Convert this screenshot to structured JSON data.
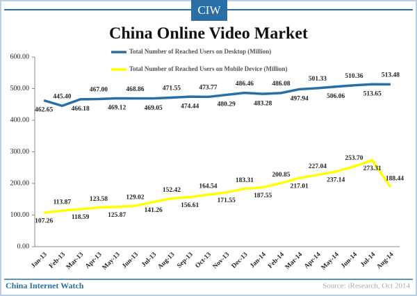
{
  "chart_data": {
    "type": "line",
    "logo": "CIW",
    "title": "China Online Video Market",
    "footer": "China Internet Watch",
    "source": "Source: iResearch, Oct 2014",
    "categories": [
      "Jan-13",
      "Feb-13",
      "Mar-13",
      "Apr-13",
      "May-13",
      "Jun-13",
      "Jul-13",
      "Aug-13",
      "Sep-13",
      "Oct-13",
      "Nov-13",
      "Dec-13",
      "Jan-14",
      "Feb-14",
      "Mar-14",
      "Apr-14",
      "May-14",
      "Jun-14",
      "Jul-14",
      "Aug-14"
    ],
    "series": [
      {
        "name": "Total Number of Reached Users on Desktop (Million)",
        "color": "#2a6ea6",
        "values": [
          462.65,
          445.4,
          466.18,
          467,
          469.12,
          468.86,
          469.05,
          471.55,
          474.44,
          473.77,
          480.29,
          486.46,
          483.28,
          486.08,
          497.94,
          501.33,
          506.06,
          510.36,
          513.65,
          513.48
        ],
        "value_labels": [
          "462.65",
          "445.40",
          "466.18",
          "467.00",
          "469.12",
          "468.86",
          "469.05",
          "471.55",
          "474.44",
          "473.77",
          "480.29",
          "486.46",
          "483.28",
          "486.08",
          "497.94",
          "501.33",
          "506.06",
          "510.36",
          "513.65",
          "513.48"
        ]
      },
      {
        "name": "Total Number of Reached Users on Mobile Device (Million)",
        "color": "#ffff00",
        "values": [
          107.26,
          113.87,
          118.59,
          123.58,
          125.87,
          129.02,
          141.26,
          152.42,
          156.61,
          164.54,
          171.55,
          183.31,
          187.55,
          200.85,
          217.01,
          227.04,
          237.14,
          253.7,
          273.31,
          188.44
        ],
        "value_labels": [
          "107.26",
          "113.87",
          "118.59",
          "123.58",
          "125.87",
          "129.02",
          "141.26",
          "152.42",
          "156.61",
          "164.54",
          "171.55",
          "183.31",
          "187.55",
          "200.85",
          "217.01",
          "227.04",
          "237.14",
          "253.70",
          "273.31",
          "188.44"
        ]
      }
    ],
    "ylim": [
      0,
      600
    ],
    "yticks": [
      {
        "value": 0,
        "label": "0.00"
      },
      {
        "value": 100,
        "label": "100.00"
      },
      {
        "value": 200,
        "label": "200.00"
      },
      {
        "value": 300,
        "label": "300.00"
      },
      {
        "value": 400,
        "label": "400.00"
      },
      {
        "value": 500,
        "label": "500.00"
      },
      {
        "value": 600,
        "label": "600.00"
      }
    ],
    "grid": false
  }
}
